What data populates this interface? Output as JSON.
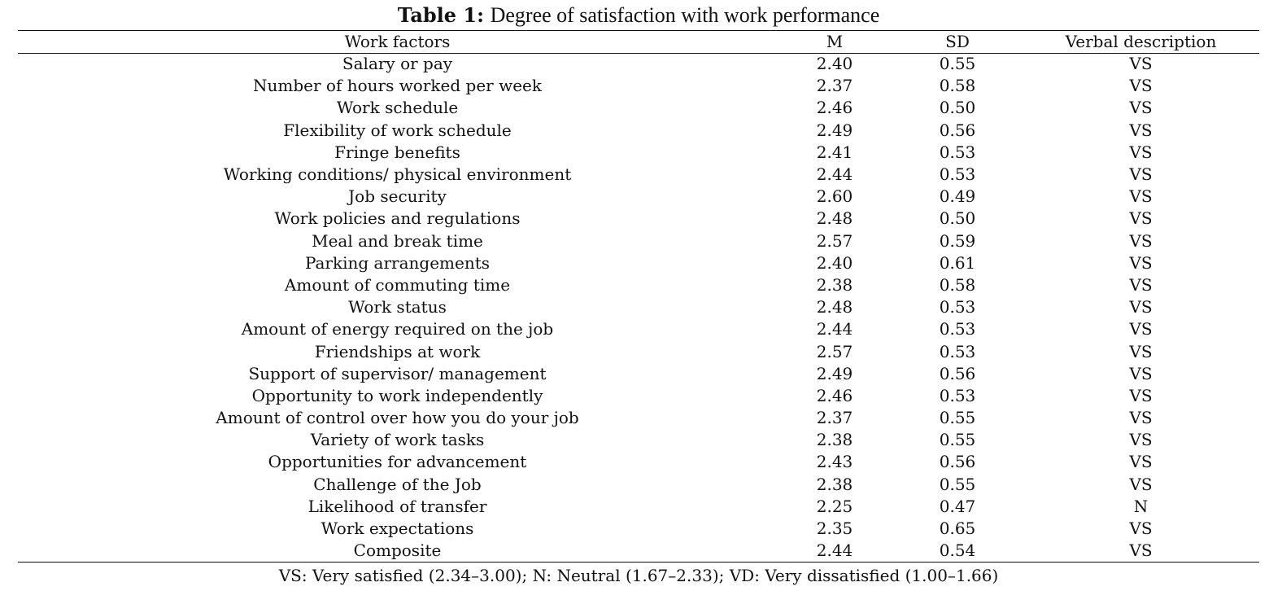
{
  "caption": {
    "label": "Table 1:",
    "title": "Degree of satisfaction with work performance"
  },
  "table": {
    "headers": [
      "Work factors",
      "M",
      "SD",
      "Verbal description"
    ],
    "rows": [
      [
        "Salary or pay",
        "2.40",
        "0.55",
        "VS"
      ],
      [
        "Number of hours worked per week",
        "2.37",
        "0.58",
        "VS"
      ],
      [
        "Work schedule",
        "2.46",
        "0.50",
        "VS"
      ],
      [
        "Flexibility of work schedule",
        "2.49",
        "0.56",
        "VS"
      ],
      [
        "Fringe benefits",
        "2.41",
        "0.53",
        "VS"
      ],
      [
        "Working conditions/ physical environment",
        "2.44",
        "0.53",
        "VS"
      ],
      [
        "Job security",
        "2.60",
        "0.49",
        "VS"
      ],
      [
        "Work policies and regulations",
        "2.48",
        "0.50",
        "VS"
      ],
      [
        "Meal and break time",
        "2.57",
        "0.59",
        "VS"
      ],
      [
        "Parking arrangements",
        "2.40",
        "0.61",
        "VS"
      ],
      [
        "Amount of commuting time",
        "2.38",
        "0.58",
        "VS"
      ],
      [
        "Work status",
        "2.48",
        "0.53",
        "VS"
      ],
      [
        "Amount of energy required on the job",
        "2.44",
        "0.53",
        "VS"
      ],
      [
        "Friendships at work",
        "2.57",
        "0.53",
        "VS"
      ],
      [
        "Support of supervisor/ management",
        "2.49",
        "0.56",
        "VS"
      ],
      [
        "Opportunity to work independently",
        "2.46",
        "0.53",
        "VS"
      ],
      [
        "Amount of control over how you do your job",
        "2.37",
        "0.55",
        "VS"
      ],
      [
        "Variety of work tasks",
        "2.38",
        "0.55",
        "VS"
      ],
      [
        "Opportunities for advancement",
        "2.43",
        "0.56",
        "VS"
      ],
      [
        "Challenge of the Job",
        "2.38",
        "0.55",
        "VS"
      ],
      [
        "Likelihood of transfer",
        "2.25",
        "0.47",
        "N"
      ],
      [
        "Work expectations",
        "2.35",
        "0.65",
        "VS"
      ],
      [
        "Composite",
        "2.44",
        "0.54",
        "VS"
      ]
    ]
  },
  "footnote": "VS: Very satisfied (2.34–3.00); N: Neutral (1.67–2.33); VD: Very dissatisfied (1.00–1.66)"
}
